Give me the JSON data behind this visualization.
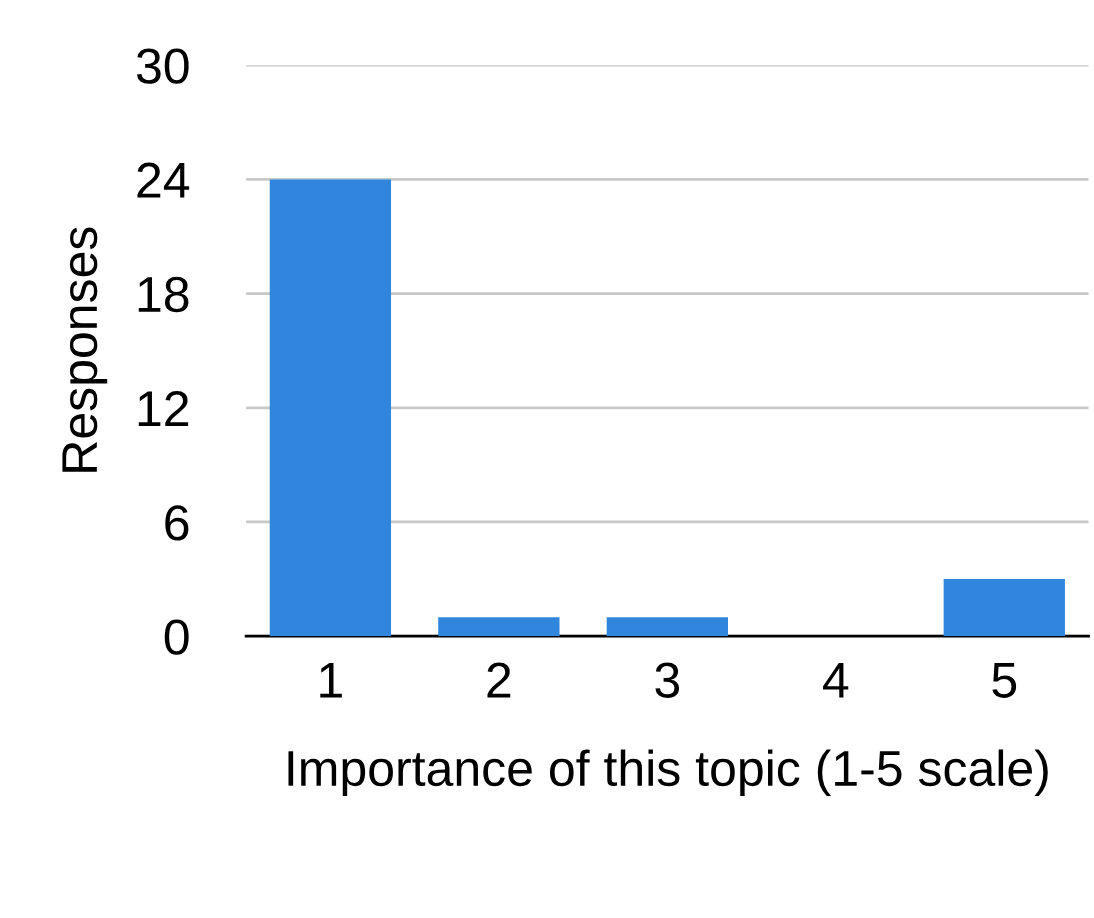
{
  "chart_data": {
    "type": "bar",
    "xlabel": "Importance of this topic (1-5 scale)",
    "ylabel": "Responses",
    "categories": [
      "1",
      "2",
      "3",
      "4",
      "5"
    ],
    "values": [
      24,
      1,
      1,
      0,
      3
    ],
    "color": "#2f86dc",
    "ylim": [
      0,
      30
    ],
    "yticks": [
      0,
      6,
      12,
      18,
      24,
      30
    ],
    "grid": "y",
    "legend": false
  }
}
